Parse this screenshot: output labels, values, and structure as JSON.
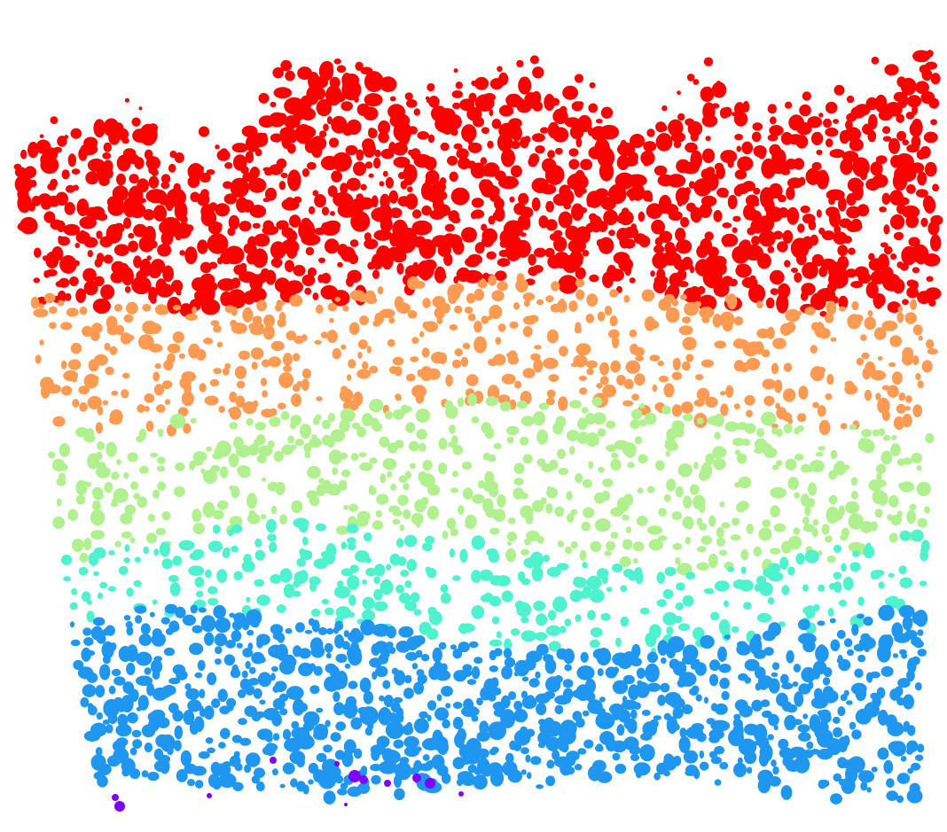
{
  "image": {
    "description_kind": "layered spatial scatter of colored speckle clusters",
    "background_color": "#ffffff",
    "layers": [
      {
        "name": "layer-1",
        "color": "#ff0000"
      },
      {
        "name": "layer-2",
        "color": "#ff9a52"
      },
      {
        "name": "layer-3",
        "color": "#b0f08e"
      },
      {
        "name": "layer-4",
        "color": "#4ef2cc"
      },
      {
        "name": "layer-5",
        "color": "#1f96f0"
      },
      {
        "name": "layer-6",
        "color": "#8000ff"
      }
    ]
  }
}
